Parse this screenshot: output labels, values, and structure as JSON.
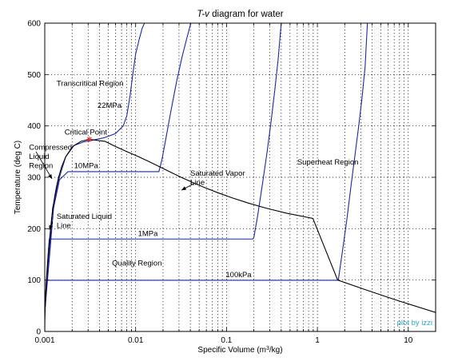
{
  "chart_data": {
    "type": "line",
    "title": "T-v diagram for water",
    "xlabel": "Specific Volume (m³/kg)",
    "ylabel": "Temperature (deg C)",
    "xscale": "log",
    "xlim": [
      0.001,
      20
    ],
    "ylim": [
      0,
      600
    ],
    "grid": true,
    "colors": {
      "saturation_dome": "#000000",
      "isobar": "#1c28a0",
      "critical_marker": "#e8282d",
      "credit": "#2aa4c8"
    },
    "x_ticks": [
      {
        "value": 0.001,
        "label": "0.001"
      },
      {
        "value": 0.01,
        "label": "0.01"
      },
      {
        "value": 0.1,
        "label": "0.1"
      },
      {
        "value": 1,
        "label": "1"
      },
      {
        "value": 10,
        "label": "10"
      }
    ],
    "y_ticks": [
      {
        "value": 0,
        "label": "0"
      },
      {
        "value": 100,
        "label": "100"
      },
      {
        "value": 200,
        "label": "200"
      },
      {
        "value": 300,
        "label": "300"
      },
      {
        "value": 400,
        "label": "400"
      },
      {
        "value": 500,
        "label": "500"
      },
      {
        "value": 600,
        "label": "600"
      }
    ],
    "saturation_dome": {
      "x": [
        0.001,
        0.001002,
        0.001008,
        0.001017,
        0.001029,
        0.001043,
        0.00106,
        0.00108,
        0.0011,
        0.00113,
        0.00116,
        0.00119,
        0.00123,
        0.00128,
        0.00134,
        0.00142,
        0.00153,
        0.0017,
        0.00203,
        0.0025,
        0.0031,
        0.0046,
        0.006,
        0.008,
        0.0108,
        0.0143,
        0.0186,
        0.0243,
        0.0317,
        0.0422,
        0.0575,
        0.0804,
        0.1156,
        0.1729,
        0.2727,
        0.4625,
        0.8919,
        1.672,
        3.407,
        7.67,
        20.0
      ],
      "y": [
        0.01,
        20,
        40,
        60,
        80,
        100,
        120,
        140,
        160,
        180,
        200,
        220,
        240,
        260,
        280,
        300,
        320,
        340,
        360,
        370,
        373.95,
        370,
        360,
        350,
        340,
        330,
        320,
        310,
        300,
        290,
        280,
        270,
        260,
        250,
        240,
        230,
        220,
        100,
        81,
        60,
        37
      ]
    },
    "critical_point": {
      "x": 0.0031,
      "y": 373.95
    },
    "isobars": [
      {
        "name": "100kPa",
        "x": [
          0.001,
          0.00104,
          0.00106,
          0.0012,
          0.01,
          0.1,
          1.6941,
          1.7,
          1.9,
          2.1,
          2.35,
          2.6,
          2.85,
          3.1,
          3.35,
          3.55
        ],
        "y": [
          28,
          99,
          99.6,
          99.6,
          99.6,
          99.6,
          99.6,
          100.5,
          160,
          215,
          285,
          345,
          400,
          455,
          515,
          600
        ]
      },
      {
        "name": "1MPa",
        "x": [
          0.001,
          0.00112,
          0.00113,
          0.01,
          0.1,
          0.1944,
          0.2,
          0.22,
          0.25,
          0.28,
          0.31,
          0.34,
          0.37,
          0.4
        ],
        "y": [
          36,
          179,
          179.9,
          179.9,
          179.9,
          179.9,
          183,
          225,
          290,
          350,
          410,
          470,
          530,
          600
        ]
      },
      {
        "name": "10MPa",
        "x": [
          0.001,
          0.00125,
          0.00145,
          0.0018,
          0.005,
          0.01,
          0.018,
          0.01803,
          0.0195,
          0.0215,
          0.0245,
          0.0285,
          0.0325,
          0.0365,
          0.0405
        ],
        "y": [
          37,
          240,
          295,
          311,
          311,
          311,
          311,
          311,
          335,
          375,
          430,
          490,
          535,
          570,
          600
        ]
      },
      {
        "name": "22MPa",
        "x": [
          0.001,
          0.00122,
          0.00145,
          0.0017,
          0.0021,
          0.0027,
          0.0035,
          0.0045,
          0.006,
          0.0073,
          0.008,
          0.0087,
          0.0093,
          0.01,
          0.011,
          0.0118,
          0.0125
        ],
        "y": [
          38,
          240,
          300,
          340,
          362,
          369,
          373,
          377,
          385,
          400,
          420,
          460,
          500,
          540,
          570,
          590,
          600
        ]
      }
    ],
    "isobar_labels": [
      {
        "text": "22MPa",
        "x": 0.0038,
        "y": 435
      },
      {
        "text": "10MPa",
        "x": 0.0021,
        "y": 318
      },
      {
        "text": "1MPa",
        "x": 0.0106,
        "y": 186
      },
      {
        "text": "100kPa",
        "x": 0.098,
        "y": 106
      }
    ],
    "annotations": [
      {
        "lines": [
          "Transcritical Region"
        ],
        "x": 0.00135,
        "y": 478
      },
      {
        "lines": [
          "Critical Point"
        ],
        "x": 0.00165,
        "y": 383
      },
      {
        "lines": [
          "Compressed",
          "Liquid",
          "Region"
        ],
        "x": 0.00067,
        "y": 354
      },
      {
        "lines": [
          "Saturated Vapor",
          "Line"
        ],
        "x": 0.04,
        "y": 303
      },
      {
        "lines": [
          "Saturated Liquid",
          "Line"
        ],
        "x": 0.00135,
        "y": 219
      },
      {
        "lines": [
          "Superheat Region"
        ],
        "x": 0.6,
        "y": 325
      },
      {
        "lines": [
          "Quality Region"
        ],
        "x": 0.0055,
        "y": 128
      }
    ],
    "arrows": [
      {
        "from": [
          0.0008,
          350
        ],
        "to": [
          0.0012,
          297
        ]
      },
      {
        "from": [
          0.044,
          288
        ],
        "to": [
          0.032,
          275
        ]
      },
      {
        "from": [
          0.00122,
          213
        ],
        "to": [
          0.00112,
          198
        ]
      }
    ],
    "credit": "plot by izzi"
  }
}
